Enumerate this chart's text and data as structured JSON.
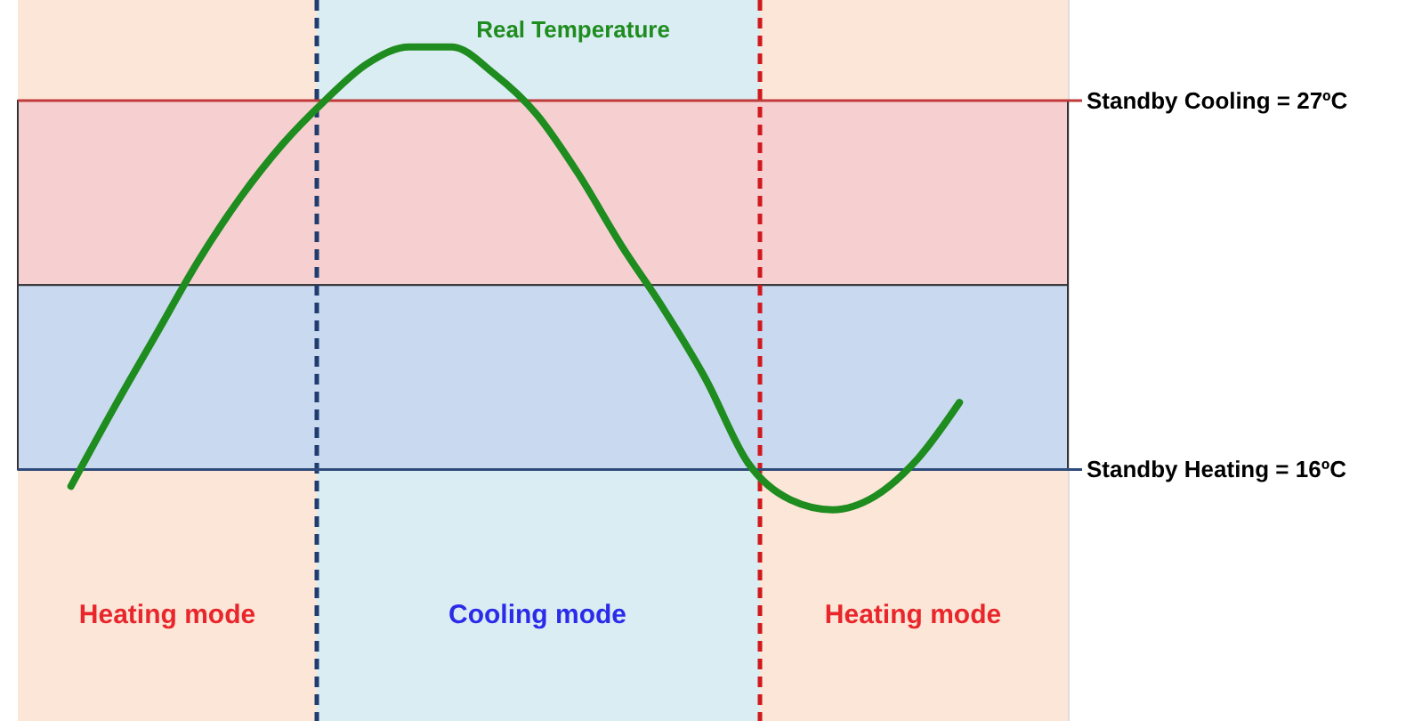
{
  "chart_data": {
    "type": "line",
    "categories": [
      null,
      null,
      null,
      null,
      null,
      null,
      null,
      null,
      null,
      null,
      null,
      null,
      null,
      null,
      null,
      null,
      null,
      null,
      null,
      null,
      null,
      null
    ],
    "series": [
      {
        "color": "#1e8c1e",
        "values": [
          15.5,
          17.8,
          20.0,
          22.2,
          24.1,
          25.7,
          27.0,
          28.1,
          28.6,
          28.6,
          27.8,
          26.6,
          24.8,
          22.7,
          20.8,
          18.7,
          16.2,
          15.1,
          14.8,
          15.2,
          16.3,
          18.0
        ]
      }
    ],
    "ylim": [
      8.5,
      30
    ],
    "yticks": [
      {
        "value": 16,
        "label": "Standby Heating = 16ºC"
      },
      {
        "value": 27,
        "label": "Standby Cooling = 27ºC"
      }
    ],
    "tick_labels": "y",
    "marker": "none",
    "line_style": "solid",
    "ref_lines": [
      {
        "axis": "y",
        "value": 27,
        "label": null,
        "color": "#c0393b"
      },
      {
        "axis": "y",
        "value": 16,
        "label": null,
        "color": "#2f4b7c"
      }
    ],
    "bands": [
      {
        "axis": "y",
        "from": 21.5,
        "to": 27,
        "label": null,
        "color": "#f6d0d1"
      },
      {
        "axis": "y",
        "from": 16,
        "to": 21.5,
        "label": null,
        "color": "#c9d9ef"
      }
    ],
    "annotations": [
      "Real Temperature",
      "Heating mode",
      "Cooling mode",
      "Heating mode"
    ]
  }
}
